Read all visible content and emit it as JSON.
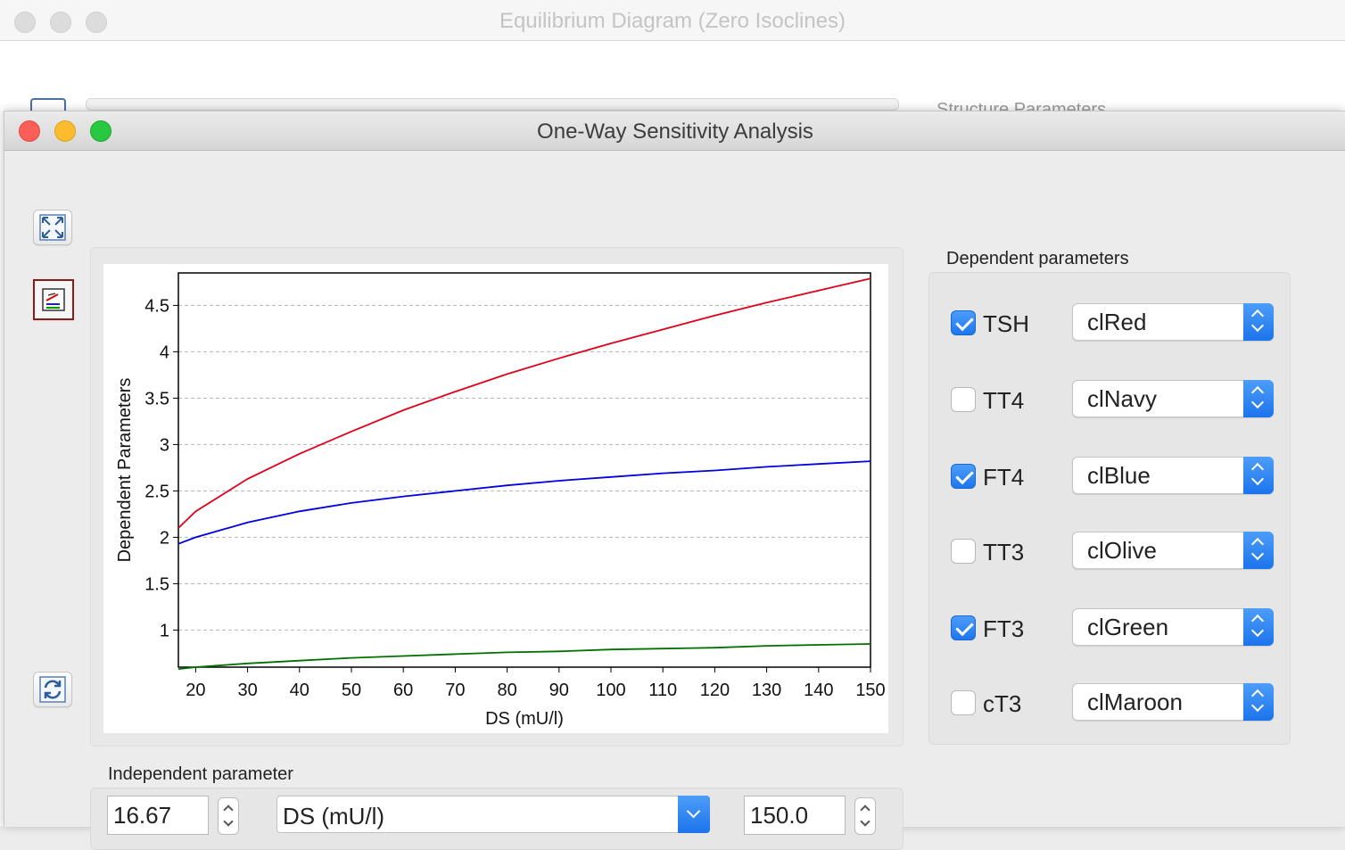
{
  "background_window": {
    "title": "Equilibrium Diagram (Zero Isoclines)",
    "side_label": "Structure Parameters"
  },
  "window": {
    "title": "One-Way Sensitivity Analysis"
  },
  "tools": [
    {
      "name": "fullscreen-button",
      "icon": "expand-icon"
    },
    {
      "name": "chart-style-button",
      "icon": "chart-icon"
    },
    {
      "name": "refresh-button",
      "icon": "refresh-icon"
    }
  ],
  "dependent": {
    "label": "Dependent parameters",
    "items": [
      {
        "label": "TSH",
        "checked": true,
        "color_name": "clRed",
        "color": "#e0001a"
      },
      {
        "label": "TT4",
        "checked": false,
        "color_name": "clNavy",
        "color": "#000080"
      },
      {
        "label": "FT4",
        "checked": true,
        "color_name": "clBlue",
        "color": "#0000e0"
      },
      {
        "label": "TT3",
        "checked": false,
        "color_name": "clOlive",
        "color": "#808000"
      },
      {
        "label": "FT3",
        "checked": true,
        "color_name": "clGreen",
        "color": "#007000"
      },
      {
        "label": "cT3",
        "checked": false,
        "color_name": "clMaroon",
        "color": "#800000"
      }
    ]
  },
  "independent": {
    "label": "Independent parameter",
    "min_value": "16.67",
    "parameter": "DS (mU/l)",
    "max_value": "150.0"
  },
  "chart_data": {
    "type": "line",
    "title": "",
    "xlabel": "DS (mU/l)",
    "ylabel": "Dependent Parameters",
    "xlim": [
      16.67,
      150
    ],
    "ylim": [
      0.6,
      4.85
    ],
    "xticks": [
      20,
      30,
      40,
      50,
      60,
      70,
      80,
      90,
      100,
      110,
      120,
      130,
      140,
      150
    ],
    "yticks": [
      1,
      1.5,
      2,
      2.5,
      3,
      3.5,
      4,
      4.5
    ],
    "ytick_labels": [
      "1",
      "1.5",
      "2",
      "2.5",
      "3",
      "3.5",
      "4",
      "4.5"
    ],
    "grid": "horizontal dashed",
    "x": [
      16.67,
      20,
      30,
      40,
      50,
      60,
      70,
      80,
      90,
      100,
      110,
      120,
      130,
      140,
      150
    ],
    "series": [
      {
        "color": "#e0001a",
        "values": [
          2.1,
          2.28,
          2.63,
          2.9,
          3.14,
          3.37,
          3.57,
          3.76,
          3.93,
          4.09,
          4.24,
          4.39,
          4.53,
          4.66,
          4.79
        ]
      },
      {
        "color": "#0000e0",
        "values": [
          1.93,
          2.0,
          2.16,
          2.28,
          2.37,
          2.44,
          2.5,
          2.56,
          2.61,
          2.65,
          2.69,
          2.72,
          2.76,
          2.79,
          2.82
        ]
      },
      {
        "color": "#007000",
        "values": [
          0.58,
          0.6,
          0.64,
          0.67,
          0.7,
          0.72,
          0.74,
          0.76,
          0.77,
          0.79,
          0.8,
          0.81,
          0.83,
          0.84,
          0.85
        ]
      }
    ]
  }
}
